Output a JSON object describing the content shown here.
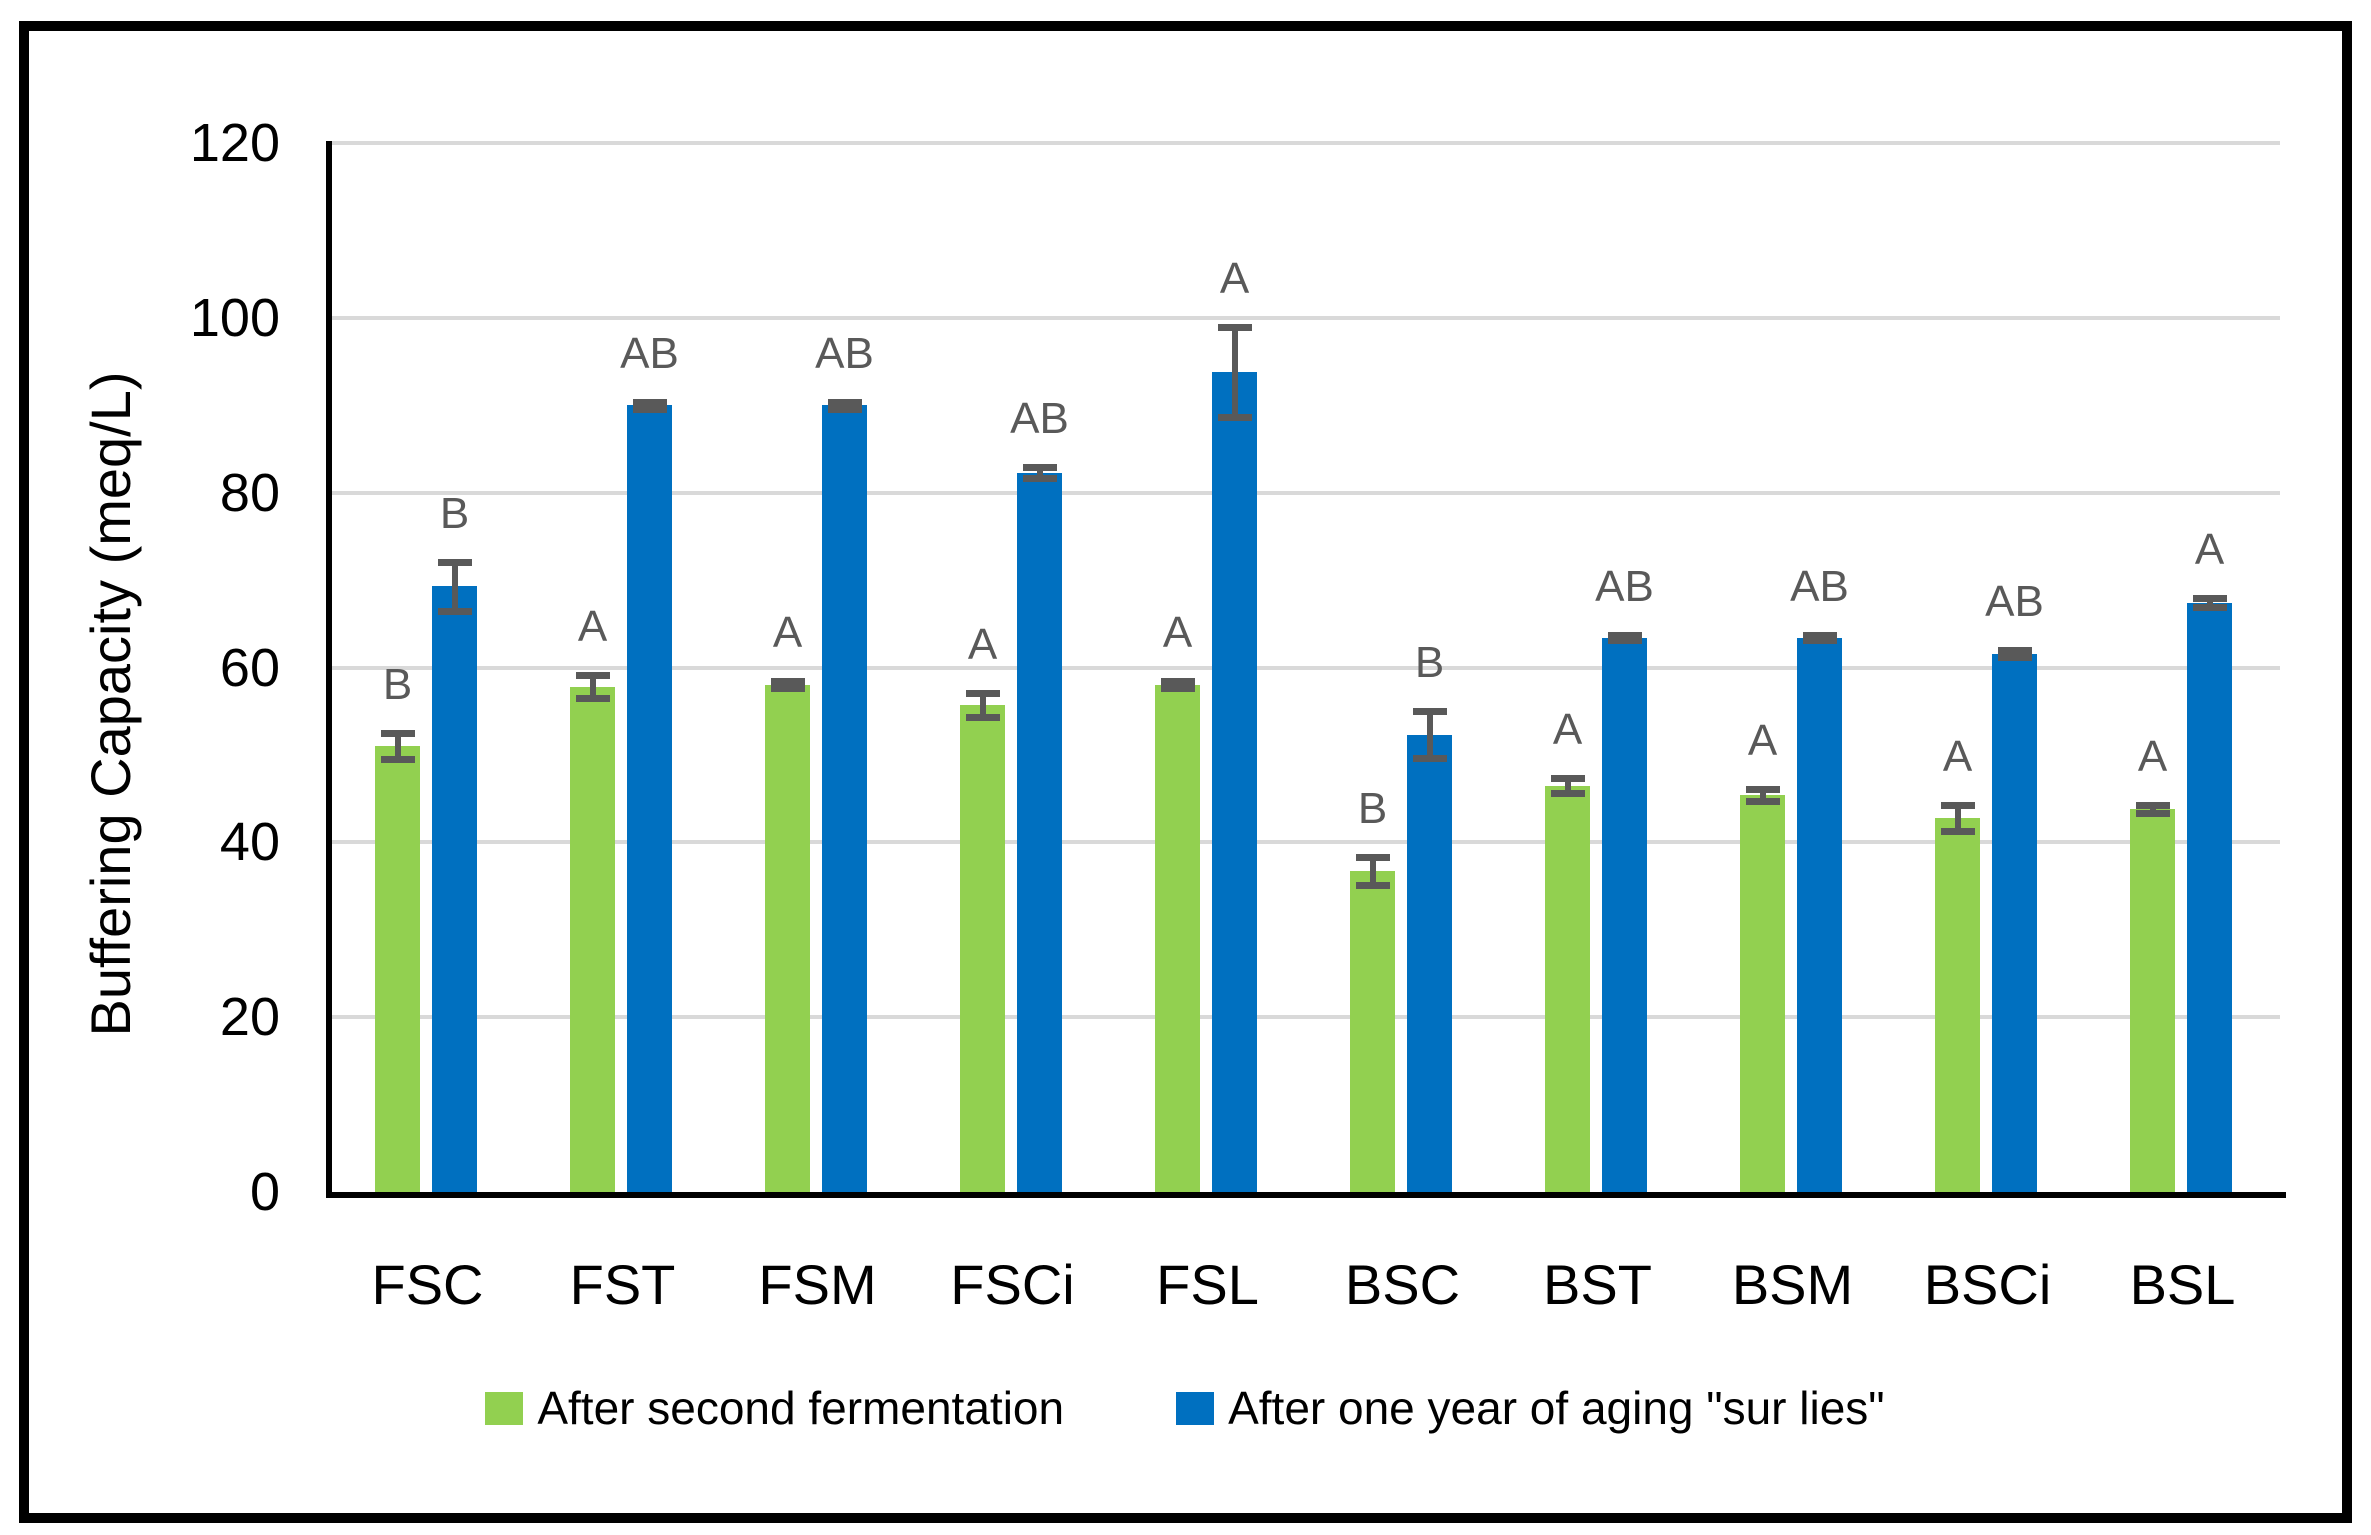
{
  "figure": {
    "background": "#FFFFFF",
    "border_color": "#000000"
  },
  "chart_data": {
    "type": "bar",
    "title": "",
    "xlabel": "",
    "ylabel": "Buffering Capacity (meq/L)",
    "ylim": [
      0,
      120
    ],
    "yticks": [
      0,
      20,
      40,
      60,
      80,
      100,
      120
    ],
    "grid": true,
    "gridline_color": "#D9D9D9",
    "axis_color": "#000000",
    "error_bar_color": "#595959",
    "letter_color": "#595959",
    "legend_position": "bottom",
    "categories": [
      "FSC",
      "FST",
      "FSM",
      "FSCi",
      "FSL",
      "BSC",
      "BST",
      "BSM",
      "BSCi",
      "BSL"
    ],
    "series": [
      {
        "name": "After second fermentation",
        "color": "#92D050",
        "values": [
          51.0,
          57.8,
          58.0,
          55.7,
          58.0,
          36.7,
          46.5,
          45.4,
          42.8,
          43.8
        ],
        "errors": [
          1.5,
          1.3,
          0.4,
          1.4,
          0.4,
          1.6,
          0.9,
          0.7,
          1.5,
          0.5
        ],
        "letters": [
          "B",
          "A",
          "A",
          "A",
          "A",
          "B",
          "A",
          "A",
          "A",
          "A"
        ]
      },
      {
        "name": "After one year of aging \"sur lies\"",
        "color": "#0070C0",
        "values": [
          69.3,
          90.0,
          90.0,
          82.3,
          93.8,
          52.3,
          63.4,
          63.4,
          61.6,
          67.4
        ],
        "errors": [
          2.8,
          0.4,
          0.4,
          0.6,
          5.1,
          2.7,
          0.3,
          0.3,
          0.4,
          0.5
        ],
        "letters": [
          "B",
          "AB",
          "AB",
          "AB",
          "A",
          "B",
          "AB",
          "AB",
          "AB",
          "A"
        ]
      }
    ]
  }
}
